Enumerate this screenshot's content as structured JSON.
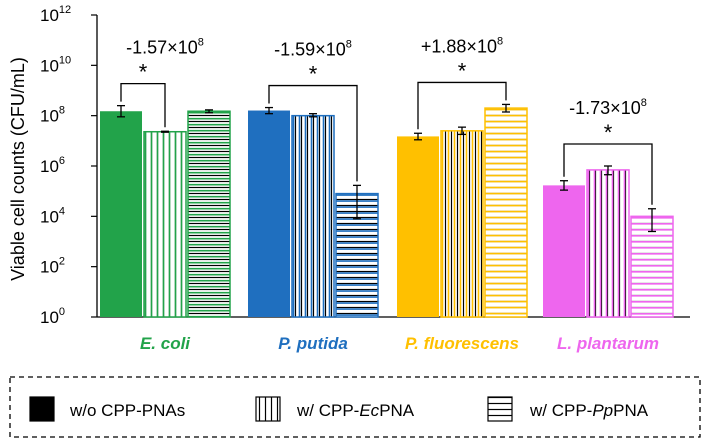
{
  "chart_data": {
    "type": "bar",
    "ylabel": "Viable cell counts (CFU/mL)",
    "yscale": "log",
    "ylim": [
      1,
      1000000000000
    ],
    "ytick_values": [
      1,
      100,
      10000,
      1000000,
      100000000,
      10000000000,
      1000000000000
    ],
    "ytick_labels": [
      {
        "base": "10",
        "exp": "0"
      },
      {
        "base": "10",
        "exp": "2"
      },
      {
        "base": "10",
        "exp": "4"
      },
      {
        "base": "10",
        "exp": "6"
      },
      {
        "base": "10",
        "exp": "8"
      },
      {
        "base": "10",
        "exp": "10"
      },
      {
        "base": "10",
        "exp": "12"
      }
    ],
    "categories": [
      "E. coli",
      "P. putida",
      "P. fluorescens",
      "L. plantarum"
    ],
    "category_colors": [
      "#22A34A",
      "#1F6FBF",
      "#FFC000",
      "#EE66EE"
    ],
    "series": [
      {
        "name": "w/o CPP-PNAs",
        "pattern": "solid",
        "values": [
          150000000,
          160000000,
          15000000,
          170000
        ],
        "err_low": [
          90000000,
          120000000,
          11000000,
          110000
        ],
        "err_high": [
          250000000,
          210000000,
          20000000,
          260000
        ]
      },
      {
        "name": "w/ CPP-EcPNA",
        "pattern": "vertical",
        "values": [
          23000000,
          100000000,
          25000000,
          700000
        ],
        "err_low": [
          22000000,
          90000000,
          18000000,
          450000
        ],
        "err_high": [
          24000000,
          120000000,
          35000000,
          1000000
        ]
      },
      {
        "name": "w/ CPP-PpPNA",
        "pattern": "horizontal",
        "values": [
          150000000,
          80000,
          200000000,
          10000
        ],
        "err_low": [
          130000000,
          8000,
          140000000,
          2500
        ],
        "err_high": [
          170000000,
          170000,
          280000000,
          20000
        ]
      }
    ],
    "significance": [
      {
        "category": "E. coli",
        "label": "-1.57×10",
        "exp": "8",
        "star": "*",
        "between": [
          0,
          1
        ]
      },
      {
        "category": "P. putida",
        "label": "-1.59×10",
        "exp": "8",
        "star": "*",
        "between": [
          0,
          2
        ]
      },
      {
        "category": "P. fluorescens",
        "label": "+1.88×10",
        "exp": "8",
        "star": "*",
        "between": [
          0,
          2
        ]
      },
      {
        "category": "L. plantarum",
        "label": "-1.73×10",
        "exp": "8",
        "star": "*",
        "between": [
          0,
          2
        ]
      }
    ],
    "legend": [
      {
        "pattern": "solid",
        "parts": [
          "w/o CPP-PNAs"
        ]
      },
      {
        "pattern": "vertical",
        "parts": [
          "w/ CPP-",
          "Ec",
          "PNA"
        ]
      },
      {
        "pattern": "horizontal",
        "parts": [
          "w/ CPP-",
          "Pp",
          "PNA"
        ]
      }
    ],
    "legend_placement": "bottom"
  }
}
